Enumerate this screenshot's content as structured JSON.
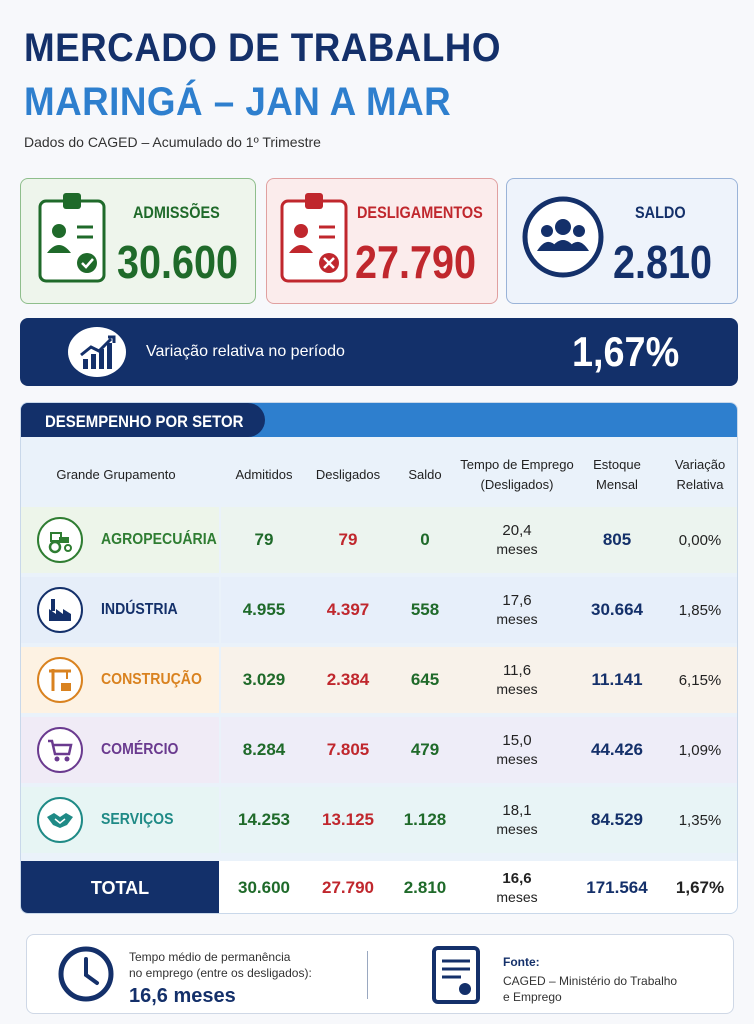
{
  "header": {
    "title_line1": "MERCADO DE TRABALHO",
    "title_line2": "MARINGÁ – JAN A MAR",
    "subtitle": "Dados do CAGED – Acumulado do 1º Trimestre"
  },
  "cards": {
    "admissoes": {
      "label": "ADMISSÕES",
      "value": "30.600"
    },
    "desligamentos": {
      "label": "DESLIGAMENTOS",
      "value": "27.790"
    },
    "saldo": {
      "label": "SALDO",
      "value": "2.810"
    }
  },
  "variacao": {
    "label": "Variação relativa no período",
    "value": "1,67%"
  },
  "setores": {
    "title": "DESEMPENHO POR SETOR",
    "columns": {
      "grupo": "Grande Grupamento",
      "admitidos": "Admitidos",
      "desligados": "Desligados",
      "saldo": "Saldo",
      "tempo_1": "Tempo de Emprego",
      "tempo_2": "(Desligados)",
      "estoque_1": "Estoque",
      "estoque_2": "Mensal",
      "variacao_1": "Variação",
      "variacao_2": "Relativa"
    },
    "rows": [
      {
        "name": "AGROPECUÁRIA",
        "admitidos": "79",
        "desligados": "79",
        "saldo": "0",
        "tempo": "20,4",
        "tempo_unit": "meses",
        "estoque": "805",
        "variacao": "0,00%",
        "color": "#2f7d32",
        "bg": "#edf5ea",
        "icon": "tractor-icon"
      },
      {
        "name": "INDÚSTRIA",
        "admitidos": "4.955",
        "desligados": "4.397",
        "saldo": "558",
        "tempo": "17,6",
        "tempo_unit": "meses",
        "estoque": "30.664",
        "variacao": "1,85%",
        "color": "#14306a",
        "bg": "#e6eef9",
        "icon": "factory-icon"
      },
      {
        "name": "CONSTRUÇÃO",
        "admitidos": "3.029",
        "desligados": "2.384",
        "saldo": "645",
        "tempo": "11,6",
        "tempo_unit": "meses",
        "estoque": "11.141",
        "variacao": "6,15%",
        "color": "#d9821f",
        "bg": "#fdf2e3",
        "icon": "crane-icon"
      },
      {
        "name": "COMÉRCIO",
        "admitidos": "8.284",
        "desligados": "7.805",
        "saldo": "479",
        "tempo": "15,0",
        "tempo_unit": "meses",
        "estoque": "44.426",
        "variacao": "1,09%",
        "color": "#6a3a8f",
        "bg": "#f0ebf6",
        "icon": "cart-icon"
      },
      {
        "name": "SERVIÇOS",
        "admitidos": "14.253",
        "desligados": "13.125",
        "saldo": "1.128",
        "tempo": "18,1",
        "tempo_unit": "meses",
        "estoque": "84.529",
        "variacao": "1,35%",
        "color": "#1f8a86",
        "bg": "#e7f5f4",
        "icon": "handshake-icon"
      }
    ],
    "total": {
      "label": "TOTAL",
      "admitidos": "30.600",
      "desligados": "27.790",
      "saldo": "2.810",
      "tempo": "16,6",
      "tempo_unit": "meses",
      "estoque": "171.564",
      "variacao": "1,67%"
    }
  },
  "footer": {
    "tempo_line1": "Tempo médio de permanência",
    "tempo_line2": "no emprego (entre os desligados):",
    "tempo_value": "16,6 meses",
    "fonte_label": "Fonte:",
    "fonte_line1": "CAGED – Ministério do Trabalho",
    "fonte_line2": "e Emprego"
  }
}
